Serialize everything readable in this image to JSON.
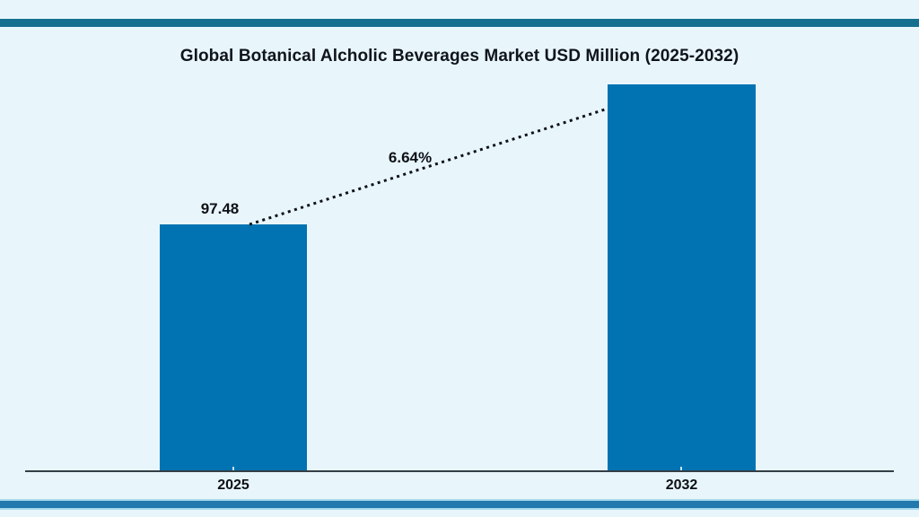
{
  "colors": {
    "background": "#e8f6fc",
    "top_strip": "#15708f",
    "bottom_strip_outer": "#a9d9ec",
    "bottom_strip_inner": "#2379ad",
    "bar": "#0173b2",
    "axis": "#333e47",
    "text": "#0e1116"
  },
  "chart_data": {
    "type": "bar",
    "title": "Global Botanical Alcholic Beverages Market USD Million (2025-2032)",
    "categories": [
      "2025",
      "2032"
    ],
    "values": [
      97.48,
      152.9
    ],
    "value_labels": [
      "97.48",
      ""
    ],
    "value_label_shown": [
      true,
      false
    ],
    "second_value_estimated_from_bar_height": true,
    "cagr_label": "6.64%",
    "annotation_style": "black dotted line from top of 2025 bar to left edge of 2032 bar",
    "xlabel": "",
    "ylabel": "",
    "ylim": [
      0,
      158
    ],
    "grid": false,
    "legend": false,
    "bar_color": "#0173b2"
  }
}
